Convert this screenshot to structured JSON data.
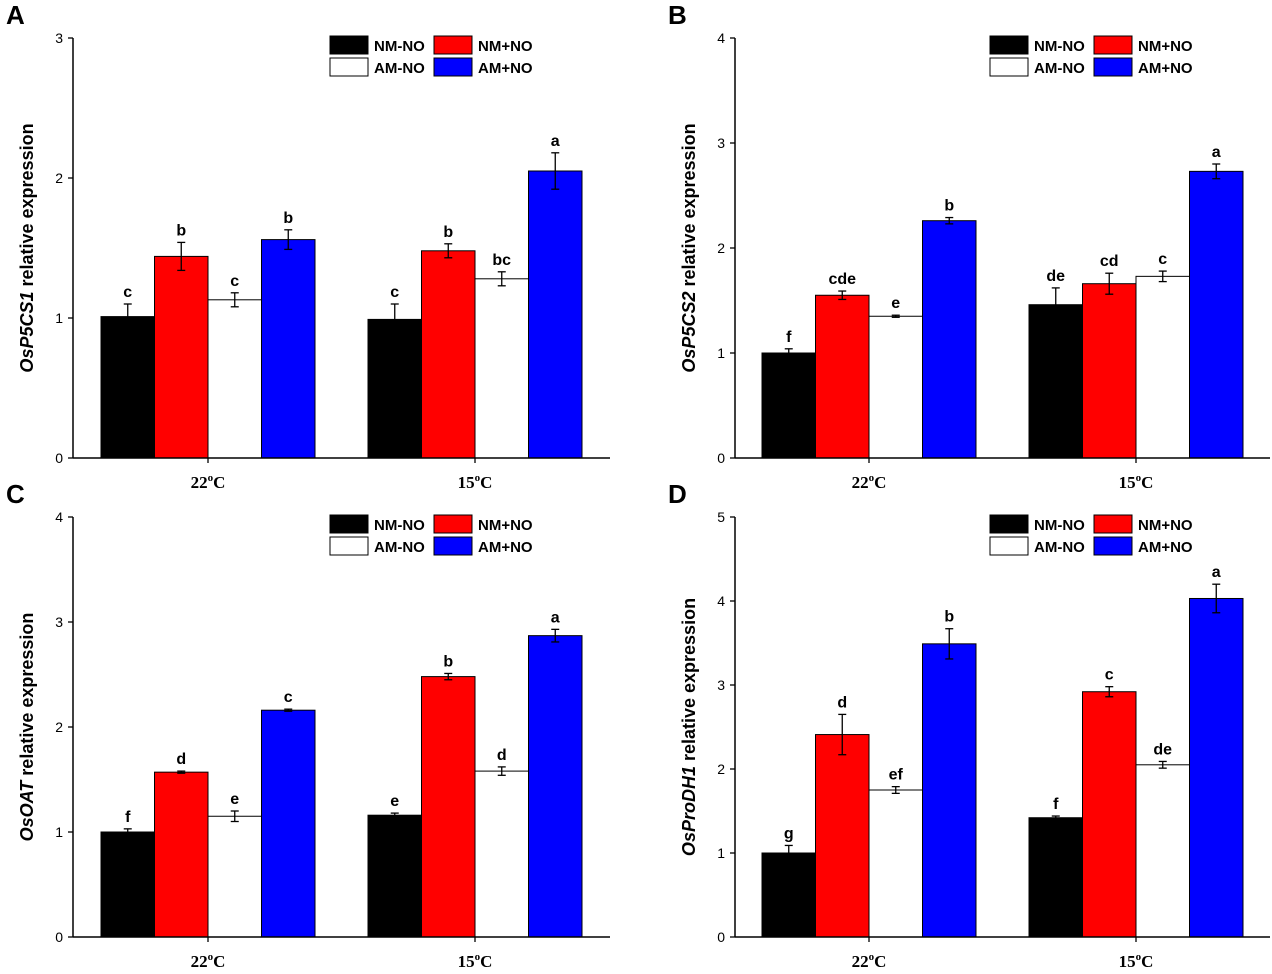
{
  "colors": {
    "NM-NO": "#000000",
    "NM+NO": "#ff0000",
    "AM-NO": "#ffffff",
    "AM+NO": "#0000ff",
    "axis": "#000000"
  },
  "chart_data": [
    {
      "panel": "A",
      "type": "bar",
      "gene": "OsP5CS1",
      "ylabel_suffix": " relative expression",
      "categories": [
        {
          "base": "22",
          "sup": "o",
          "unit": "C"
        },
        {
          "base": "15",
          "sup": "o",
          "unit": "C"
        }
      ],
      "series": [
        {
          "name": "NM-NO",
          "values": [
            1.01,
            0.99
          ],
          "errors": [
            0.09,
            0.11
          ],
          "letters": [
            "c",
            "c"
          ]
        },
        {
          "name": "NM+NO",
          "values": [
            1.44,
            1.48
          ],
          "errors": [
            0.1,
            0.05
          ],
          "letters": [
            "b",
            "b"
          ]
        },
        {
          "name": "AM-NO",
          "values": [
            1.13,
            1.28
          ],
          "errors": [
            0.05,
            0.05
          ],
          "letters": [
            "c",
            "bc"
          ]
        },
        {
          "name": "AM+NO",
          "values": [
            1.56,
            2.05
          ],
          "errors": [
            0.07,
            0.13
          ],
          "letters": [
            "b",
            "a"
          ]
        }
      ],
      "ylim": [
        0,
        3
      ],
      "yticks": [
        0,
        1,
        2,
        3
      ],
      "legend": "top-right"
    },
    {
      "panel": "B",
      "type": "bar",
      "gene": "OsP5CS2",
      "ylabel_suffix": " relative expression",
      "categories": [
        {
          "base": "22",
          "sup": "o",
          "unit": "C"
        },
        {
          "base": "15",
          "sup": "o",
          "unit": "C"
        }
      ],
      "series": [
        {
          "name": "NM-NO",
          "values": [
            1.0,
            1.46
          ],
          "errors": [
            0.04,
            0.16
          ],
          "letters": [
            "f",
            "de"
          ]
        },
        {
          "name": "NM+NO",
          "values": [
            1.55,
            1.66
          ],
          "errors": [
            0.04,
            0.1
          ],
          "letters": [
            "cde",
            "cd"
          ]
        },
        {
          "name": "AM-NO",
          "values": [
            1.35,
            1.73
          ],
          "errors": [
            0.01,
            0.05
          ],
          "letters": [
            "e",
            "c"
          ]
        },
        {
          "name": "AM+NO",
          "values": [
            2.26,
            2.73
          ],
          "errors": [
            0.03,
            0.07
          ],
          "letters": [
            "b",
            "a"
          ]
        }
      ],
      "ylim": [
        0,
        4
      ],
      "yticks": [
        0,
        1,
        2,
        3,
        4
      ],
      "legend": "top-right"
    },
    {
      "panel": "C",
      "type": "bar",
      "gene": "OsOAT",
      "ylabel_suffix": " relative expression",
      "categories": [
        {
          "base": "22",
          "sup": "o",
          "unit": "C"
        },
        {
          "base": "15",
          "sup": "o",
          "unit": "C"
        }
      ],
      "series": [
        {
          "name": "NM-NO",
          "values": [
            1.0,
            1.16
          ],
          "errors": [
            0.03,
            0.02
          ],
          "letters": [
            "f",
            "e"
          ]
        },
        {
          "name": "NM+NO",
          "values": [
            1.57,
            2.48
          ],
          "errors": [
            0.01,
            0.03
          ],
          "letters": [
            "d",
            "b"
          ]
        },
        {
          "name": "AM-NO",
          "values": [
            1.15,
            1.58
          ],
          "errors": [
            0.05,
            0.04
          ],
          "letters": [
            "e",
            "d"
          ]
        },
        {
          "name": "AM+NO",
          "values": [
            2.16,
            2.87
          ],
          "errors": [
            0.01,
            0.06
          ],
          "letters": [
            "c",
            "a"
          ]
        }
      ],
      "ylim": [
        0,
        4
      ],
      "yticks": [
        0,
        1,
        2,
        3,
        4
      ],
      "legend": "top-right"
    },
    {
      "panel": "D",
      "type": "bar",
      "gene": "OsProDH1",
      "ylabel_suffix": " relative expression",
      "categories": [
        {
          "base": "22",
          "sup": "o",
          "unit": "C"
        },
        {
          "base": "15",
          "sup": "o",
          "unit": "C"
        }
      ],
      "series": [
        {
          "name": "NM-NO",
          "values": [
            1.0,
            1.42
          ],
          "errors": [
            0.09,
            0.02
          ],
          "letters": [
            "g",
            "f"
          ]
        },
        {
          "name": "NM+NO",
          "values": [
            2.41,
            2.92
          ],
          "errors": [
            0.24,
            0.06
          ],
          "letters": [
            "d",
            "c"
          ]
        },
        {
          "name": "AM-NO",
          "values": [
            1.75,
            2.05
          ],
          "errors": [
            0.04,
            0.04
          ],
          "letters": [
            "ef",
            "de"
          ]
        },
        {
          "name": "AM+NO",
          "values": [
            3.49,
            4.03
          ],
          "errors": [
            0.18,
            0.17
          ],
          "letters": [
            "b",
            "a"
          ]
        }
      ],
      "ylim": [
        0,
        5
      ],
      "yticks": [
        0,
        1,
        2,
        3,
        4,
        5
      ],
      "legend": "top-right"
    }
  ]
}
